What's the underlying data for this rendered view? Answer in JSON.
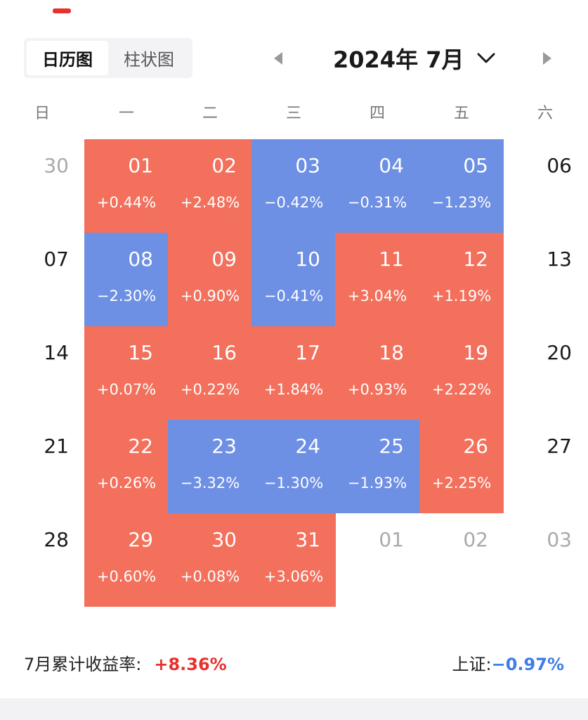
{
  "view_toggle": {
    "calendar_label": "日历图",
    "bar_label": "柱状图"
  },
  "header": {
    "month_title": "2024年 7月"
  },
  "weekdays": [
    "日",
    "一",
    "二",
    "三",
    "四",
    "五",
    "六"
  ],
  "colors": {
    "up": "#f2705c",
    "down": "#6d8fe4",
    "accent": "#e8312d",
    "index_blue": "#3d7ee8"
  },
  "calendar": {
    "weeks": [
      [
        {
          "date": "30",
          "pct": "",
          "state": "other"
        },
        {
          "date": "01",
          "pct": "+0.44%",
          "state": "up"
        },
        {
          "date": "02",
          "pct": "+2.48%",
          "state": "up"
        },
        {
          "date": "03",
          "pct": "−0.42%",
          "state": "down"
        },
        {
          "date": "04",
          "pct": "−0.31%",
          "state": "down"
        },
        {
          "date": "05",
          "pct": "−1.23%",
          "state": "down"
        },
        {
          "date": "06",
          "pct": "",
          "state": "weekend"
        }
      ],
      [
        {
          "date": "07",
          "pct": "",
          "state": "weekend"
        },
        {
          "date": "08",
          "pct": "−2.30%",
          "state": "down"
        },
        {
          "date": "09",
          "pct": "+0.90%",
          "state": "up"
        },
        {
          "date": "10",
          "pct": "−0.41%",
          "state": "down"
        },
        {
          "date": "11",
          "pct": "+3.04%",
          "state": "up"
        },
        {
          "date": "12",
          "pct": "+1.19%",
          "state": "up"
        },
        {
          "date": "13",
          "pct": "",
          "state": "weekend"
        }
      ],
      [
        {
          "date": "14",
          "pct": "",
          "state": "weekend"
        },
        {
          "date": "15",
          "pct": "+0.07%",
          "state": "up"
        },
        {
          "date": "16",
          "pct": "+0.22%",
          "state": "up"
        },
        {
          "date": "17",
          "pct": "+1.84%",
          "state": "up"
        },
        {
          "date": "18",
          "pct": "+0.93%",
          "state": "up"
        },
        {
          "date": "19",
          "pct": "+2.22%",
          "state": "up"
        },
        {
          "date": "20",
          "pct": "",
          "state": "weekend"
        }
      ],
      [
        {
          "date": "21",
          "pct": "",
          "state": "weekend"
        },
        {
          "date": "22",
          "pct": "+0.26%",
          "state": "up"
        },
        {
          "date": "23",
          "pct": "−3.32%",
          "state": "down"
        },
        {
          "date": "24",
          "pct": "−1.30%",
          "state": "down"
        },
        {
          "date": "25",
          "pct": "−1.93%",
          "state": "down"
        },
        {
          "date": "26",
          "pct": "+2.25%",
          "state": "up"
        },
        {
          "date": "27",
          "pct": "",
          "state": "weekend"
        }
      ],
      [
        {
          "date": "28",
          "pct": "",
          "state": "weekend"
        },
        {
          "date": "29",
          "pct": "+0.60%",
          "state": "up"
        },
        {
          "date": "30",
          "pct": "+0.08%",
          "state": "up"
        },
        {
          "date": "31",
          "pct": "+3.06%",
          "state": "up"
        },
        {
          "date": "01",
          "pct": "",
          "state": "other"
        },
        {
          "date": "02",
          "pct": "",
          "state": "other"
        },
        {
          "date": "03",
          "pct": "",
          "state": "other"
        }
      ]
    ]
  },
  "footer": {
    "cumulative_label": "7月累计收益率:",
    "cumulative_value": "+8.36%",
    "index_label": "上证:",
    "index_value": "−0.97%"
  }
}
